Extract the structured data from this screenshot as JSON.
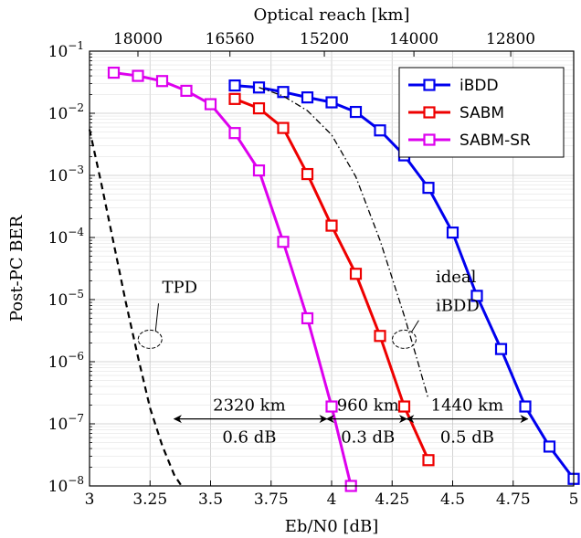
{
  "chart_data": {
    "type": "line",
    "xlabel": "Eb/N0 [dB]",
    "ylabel": "Post-PC BER",
    "top_axis_label": "Optical reach [km]",
    "xlim": [
      3,
      5
    ],
    "ylim": [
      1e-08,
      0.1
    ],
    "yscale": "log",
    "grid": true,
    "legend_position": "top-right",
    "x_ticks": [
      3,
      3.25,
      3.5,
      3.75,
      4,
      4.25,
      4.5,
      4.75,
      5
    ],
    "x_tick_labels": [
      "3",
      "3.25",
      "3.5",
      "3.75",
      "4",
      "4.25",
      "4.5",
      "4.75",
      "5"
    ],
    "y_ticks": [
      1e-08,
      1e-07,
      1e-06,
      1e-05,
      0.0001,
      0.001,
      0.01,
      0.1
    ],
    "y_tick_bases": [
      "10",
      "10",
      "10",
      "10",
      "10",
      "10",
      "10",
      "10"
    ],
    "y_tick_exps": [
      "−8",
      "−7",
      "−6",
      "−5",
      "−4",
      "−3",
      "−2",
      "−1"
    ],
    "top_ticks": [
      3.2,
      3.58,
      3.97,
      4.34,
      4.74
    ],
    "top_tick_labels": [
      "18000",
      "16560",
      "15200",
      "14000",
      "12800"
    ],
    "series": [
      {
        "name": "iBDD",
        "color": "#0000ee",
        "style": "solid-marker",
        "x": [
          3.6,
          3.7,
          3.8,
          3.9,
          4.0,
          4.1,
          4.2,
          4.3,
          4.4,
          4.5,
          4.6,
          4.7,
          4.8,
          4.9,
          5.0
        ],
        "y": [
          0.028,
          0.026,
          0.022,
          0.018,
          0.015,
          0.0105,
          0.0053,
          0.0021,
          0.00063,
          0.00012,
          1.15e-05,
          1.6e-06,
          1.9e-07,
          4.3e-08,
          1.3e-08
        ]
      },
      {
        "name": "SABM",
        "color": "#ee0000",
        "style": "solid-marker",
        "x": [
          3.6,
          3.7,
          3.8,
          3.9,
          4.0,
          4.1,
          4.2,
          4.3,
          4.4
        ],
        "y": [
          0.017,
          0.012,
          0.0058,
          0.00105,
          0.000155,
          2.6e-05,
          2.6e-06,
          1.9e-07,
          2.6e-08
        ]
      },
      {
        "name": "SABM-SR",
        "color": "#dd00ee",
        "style": "solid-marker",
        "x": [
          3.1,
          3.2,
          3.3,
          3.4,
          3.5,
          3.6,
          3.7,
          3.8,
          3.9,
          4.0,
          4.08
        ],
        "y": [
          0.045,
          0.04,
          0.033,
          0.023,
          0.014,
          0.0048,
          0.0012,
          8.5e-05,
          5e-06,
          1.9e-07,
          1e-08
        ]
      },
      {
        "name": "",
        "color": "#000000",
        "style": "dashed",
        "x": [
          3.0,
          3.05,
          3.1,
          3.15,
          3.2,
          3.25,
          3.3,
          3.35,
          3.38
        ],
        "y": [
          0.0055,
          0.0007,
          8e-05,
          9e-06,
          1.2e-06,
          1.8e-07,
          4.5e-08,
          1.5e-08,
          1e-08
        ]
      },
      {
        "name": "",
        "color": "#000000",
        "style": "dashdot",
        "x": [
          3.7,
          3.8,
          3.9,
          4.0,
          4.1,
          4.2,
          4.3,
          4.35,
          4.4
        ],
        "y": [
          0.026,
          0.019,
          0.011,
          0.0045,
          0.00095,
          9e-05,
          5.5e-06,
          1.2e-06,
          2.5e-07
        ]
      }
    ],
    "annotations": [
      {
        "text": "TPD",
        "x": 3.3,
        "y": 1.3e-05
      },
      {
        "text": "ideal",
        "x": 4.43,
        "y": 1.9e-05
      },
      {
        "text": "iBDD",
        "x": 4.43,
        "y": 6.5e-06
      }
    ],
    "ellipses": [
      {
        "x": 3.25,
        "y": 2.3e-06
      },
      {
        "x": 4.3,
        "y": 2.3e-06
      }
    ],
    "gap_arrows": [
      {
        "x1": 3.35,
        "x2": 3.98,
        "y": 1.2e-07,
        "top_label": "2320 km",
        "bottom_label": "0.6 dB",
        "label_x": 3.66
      },
      {
        "x1": 3.98,
        "x2": 4.31,
        "y": 1.2e-07,
        "top_label": "960 km",
        "bottom_label": "0.3 dB",
        "label_x": 4.15
      },
      {
        "x1": 4.31,
        "x2": 4.81,
        "y": 1.2e-07,
        "top_label": "1440 km",
        "bottom_label": "0.5 dB",
        "label_x": 4.56
      }
    ]
  }
}
